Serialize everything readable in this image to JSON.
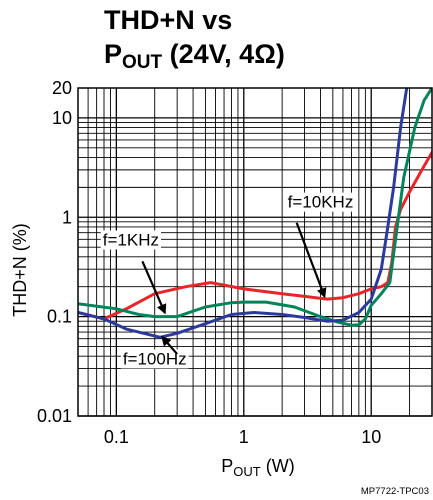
{
  "chart_data": {
    "type": "line",
    "title_line1": "THD+N vs",
    "title_line2_main": "P",
    "title_line2_sub": "OUT",
    "title_line2_rest": " (24V, 4Ω)",
    "xlabel_main": "P",
    "xlabel_sub": "OUT",
    "xlabel_rest": " (W)",
    "ylabel": "THD+N (%)",
    "x_scale": "log",
    "y_scale": "log",
    "xlim": [
      0.05,
      30
    ],
    "ylim": [
      0.01,
      20
    ],
    "xtick_labels": [
      {
        "value": 0.1,
        "label": "0.1"
      },
      {
        "value": 1,
        "label": "1"
      },
      {
        "value": 10,
        "label": "10"
      }
    ],
    "ytick_labels": [
      {
        "value": 20,
        "label": "20"
      },
      {
        "value": 10,
        "label": "10"
      },
      {
        "value": 1,
        "label": "1"
      },
      {
        "value": 0.1,
        "label": "0.1"
      },
      {
        "value": 0.01,
        "label": "0.01"
      }
    ],
    "grid": true,
    "series": [
      {
        "color": "#e8262a",
        "x": [
          0.05,
          0.08,
          0.12,
          0.2,
          0.35,
          0.55,
          1.0,
          2.0,
          3.0,
          4.5,
          6.0,
          8.0,
          10.0,
          12.0,
          13.5,
          14.5,
          15.5,
          17.0,
          20.0,
          25.0,
          30.0
        ],
        "y": [
          0.11,
          0.095,
          0.12,
          0.17,
          0.2,
          0.22,
          0.19,
          0.17,
          0.16,
          0.15,
          0.155,
          0.17,
          0.19,
          0.2,
          0.22,
          0.35,
          0.8,
          1.2,
          1.8,
          3.0,
          4.5
        ]
      },
      {
        "color": "#00855a",
        "x": [
          0.05,
          0.1,
          0.15,
          0.2,
          0.3,
          0.5,
          0.8,
          1.0,
          1.5,
          2.5,
          4.0,
          5.5,
          7.0,
          8.0,
          9.0,
          10.0,
          12.0,
          14.0,
          16.0,
          18.0,
          22.0,
          26.0,
          30.0
        ],
        "y": [
          0.135,
          0.12,
          0.105,
          0.1,
          0.1,
          0.125,
          0.138,
          0.14,
          0.14,
          0.125,
          0.1,
          0.088,
          0.082,
          0.083,
          0.095,
          0.13,
          0.17,
          0.22,
          0.8,
          2.5,
          8.0,
          15.0,
          20.0
        ]
      },
      {
        "color": "#2b3a9c",
        "x": [
          0.05,
          0.08,
          0.12,
          0.18,
          0.22,
          0.3,
          0.5,
          0.8,
          1.2,
          2.0,
          3.0,
          4.5,
          6.0,
          8.0,
          10.0,
          12.0,
          13.5,
          15.0,
          17.0,
          19.0
        ],
        "y": [
          0.11,
          0.095,
          0.075,
          0.066,
          0.062,
          0.068,
          0.085,
          0.105,
          0.11,
          0.105,
          0.098,
          0.09,
          0.092,
          0.11,
          0.15,
          0.3,
          0.8,
          2.0,
          8.0,
          20.0
        ]
      }
    ],
    "annotations": [
      {
        "text": "f=10KHz",
        "text_x": 4.0,
        "text_y": 1.25,
        "arrow_from": [
          2.6,
          0.88
        ],
        "arrow_to": [
          4.3,
          0.16
        ]
      },
      {
        "text": "f=1KHz",
        "text_x": 0.13,
        "text_y": 0.52,
        "arrow_from": [
          0.16,
          0.36
        ],
        "arrow_to": [
          0.24,
          0.11
        ]
      },
      {
        "text": "f=100Hz",
        "text_x": 0.2,
        "text_y": 0.033,
        "arrow_from": [
          0.3,
          0.042
        ],
        "arrow_to": [
          0.23,
          0.062
        ]
      }
    ],
    "credit": "MP7722-TPC03"
  }
}
